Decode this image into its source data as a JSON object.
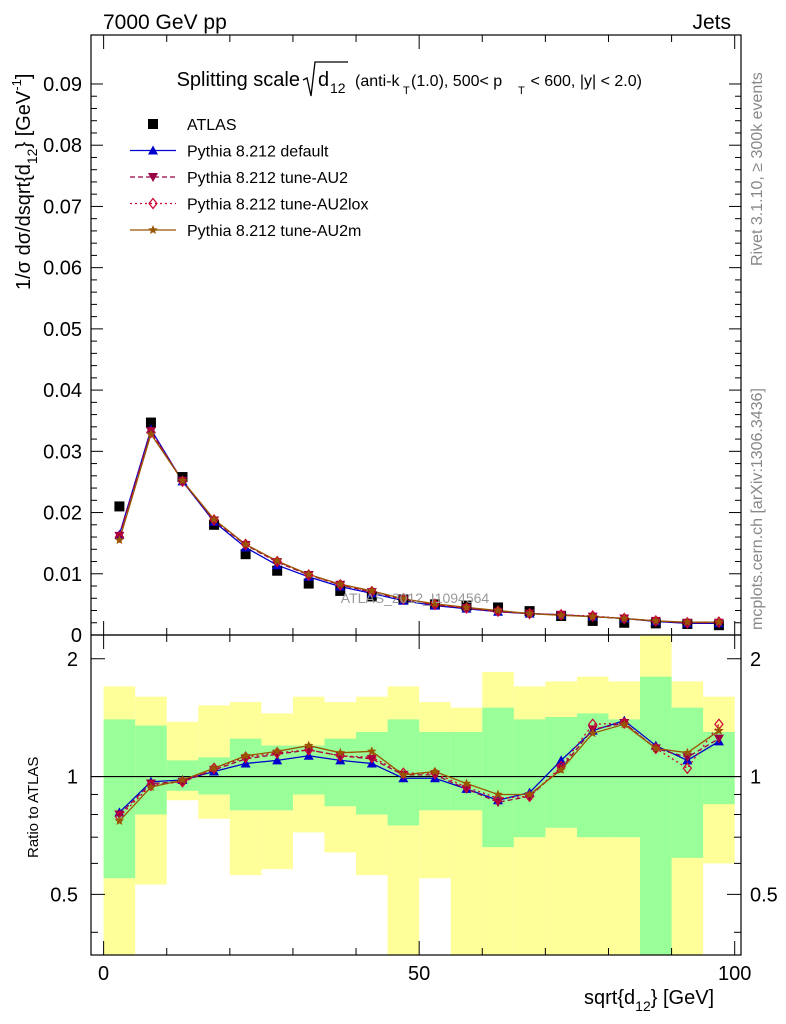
{
  "header": {
    "left_label": "7000 GeV pp",
    "right_label": "Jets"
  },
  "side_labels": {
    "rivet": "Rivet 3.1.10, ≥ 300k events",
    "source": "mcplots.cern.ch [arXiv:1306.3436]"
  },
  "chart_data": [
    {
      "type": "line",
      "title": "Splitting scale √d12 (anti-kT(1.0), 500< pT < 600, |y| < 2.0)",
      "title_parts": {
        "prefix": "Splitting scale",
        "d": "d",
        "d_sub": "12",
        "jet_open": "(anti-k",
        "kt_sub": "T",
        "jet_mid": "(1.0), 500< p",
        "pt_sub": "T",
        "jet_end": " < 600, |y| < 2.0)"
      },
      "ylabel": "1/σ dσ/dsqrt{d12} [GeV⁻¹]",
      "ylabel_parts": {
        "main": "1/σ dσ/dsqrt{d",
        "sub": "12",
        "close": "} [GeV",
        "sup": "-1",
        "end": "]"
      },
      "watermark": "ATLAS_2012_I1094564",
      "xlim": [
        -2,
        101
      ],
      "ylim": [
        0,
        0.098
      ],
      "yticks": [
        0,
        0.01,
        0.02,
        0.03,
        0.04,
        0.05,
        0.06,
        0.07,
        0.08,
        0.09
      ],
      "ytick_labels": [
        "0",
        "0.01",
        "0.02",
        "0.03",
        "0.04",
        "0.05",
        "0.06",
        "0.07",
        "0.08",
        "0.09"
      ],
      "legend_position": "top-left",
      "x": [
        2.5,
        7.5,
        12.5,
        17.5,
        22.5,
        27.5,
        32.5,
        37.5,
        42.5,
        47.5,
        52.5,
        57.5,
        62.5,
        67.5,
        72.5,
        77.5,
        82.5,
        87.5,
        92.5,
        97.5
      ],
      "series": [
        {
          "name": "ATLAS",
          "marker": "square",
          "color": "#000000",
          "values": [
            0.021,
            0.0347,
            0.0258,
            0.018,
            0.0132,
            0.0105,
            0.0084,
            0.0072,
            0.0063,
            0.0058,
            0.005,
            0.0048,
            0.0045,
            0.0039,
            0.0031,
            0.0023,
            0.002,
            0.0019,
            0.0018,
            0.0016
          ]
        },
        {
          "name": "Pythia 8.212 default",
          "marker": "triangle-up",
          "color": "#0000cc",
          "values": [
            0.0164,
            0.0336,
            0.0251,
            0.0185,
            0.0143,
            0.0114,
            0.0095,
            0.0079,
            0.0068,
            0.0056,
            0.0048,
            0.0043,
            0.0038,
            0.0035,
            0.0033,
            0.003,
            0.0027,
            0.0022,
            0.0019,
            0.0019
          ]
        },
        {
          "name": "Pythia 8.212 tune-AU2",
          "marker": "triangle-down",
          "color": "#990044",
          "dash": "5,3",
          "values": [
            0.0162,
            0.0333,
            0.0252,
            0.0187,
            0.0147,
            0.0119,
            0.0098,
            0.0082,
            0.007,
            0.0058,
            0.0049,
            0.0044,
            0.0038,
            0.0035,
            0.0033,
            0.003,
            0.0027,
            0.0023,
            0.002,
            0.002
          ]
        },
        {
          "name": "Pythia 8.212 tune-AU2lox",
          "marker": "diamond-open",
          "color": "#cc0033",
          "dash": "2,3",
          "values": [
            0.016,
            0.0331,
            0.0251,
            0.0188,
            0.0148,
            0.012,
            0.0098,
            0.0082,
            0.0071,
            0.0059,
            0.005,
            0.0044,
            0.0039,
            0.0035,
            0.0033,
            0.0031,
            0.0027,
            0.0023,
            0.002,
            0.0021
          ]
        },
        {
          "name": "Pythia 8.212 tune-AU2m",
          "marker": "star",
          "color": "#995500",
          "values": [
            0.0155,
            0.0328,
            0.0252,
            0.0189,
            0.0148,
            0.0121,
            0.0099,
            0.0083,
            0.0072,
            0.0059,
            0.0051,
            0.0045,
            0.004,
            0.0035,
            0.0032,
            0.003,
            0.0027,
            0.0023,
            0.0021,
            0.0021
          ]
        }
      ]
    },
    {
      "type": "line",
      "ylabel": "Ratio to ATLAS",
      "xlabel": "sqrt{d12} [GeV]",
      "xlabel_parts": {
        "main": "sqrt{d",
        "sub": "12",
        "close": "} [GeV]"
      },
      "xlim": [
        -2,
        101
      ],
      "ylim": [
        0.35,
        2.3
      ],
      "xticks": [
        0,
        50,
        100
      ],
      "xtick_labels": [
        "0",
        "50",
        "100"
      ],
      "yticks": [
        0.5,
        1,
        2
      ],
      "ytick_labels": [
        "0.5",
        "1",
        "2"
      ],
      "reference_line": 1,
      "bin_edges": [
        0,
        5,
        10,
        15,
        20,
        25,
        30,
        35,
        40,
        45,
        50,
        55,
        60,
        65,
        70,
        75,
        80,
        85,
        90,
        95,
        100
      ],
      "band_inner": {
        "color": "#99ff99",
        "low": [
          0.55,
          0.8,
          0.92,
          0.9,
          0.82,
          0.82,
          0.9,
          0.84,
          0.8,
          0.75,
          0.82,
          0.82,
          0.66,
          0.7,
          0.74,
          0.7,
          0.7,
          0.35,
          0.62,
          0.85
        ],
        "high": [
          1.4,
          1.35,
          1.1,
          1.12,
          1.25,
          1.2,
          1.2,
          1.25,
          1.3,
          1.4,
          1.3,
          1.3,
          1.5,
          1.4,
          1.42,
          1.45,
          1.4,
          1.8,
          1.5,
          1.3
        ]
      },
      "band_outer": {
        "color": "#ffff99",
        "low": [
          0.35,
          0.53,
          0.87,
          0.78,
          0.56,
          0.58,
          0.72,
          0.64,
          0.56,
          0.35,
          0.55,
          0.35,
          0.35,
          0.35,
          0.35,
          0.35,
          0.35,
          0.35,
          0.35,
          0.6
        ],
        "high": [
          1.7,
          1.6,
          1.38,
          1.52,
          1.55,
          1.45,
          1.6,
          1.55,
          1.6,
          1.7,
          1.55,
          1.5,
          1.85,
          1.7,
          1.75,
          1.8,
          1.75,
          2.3,
          1.75,
          1.6
        ]
      },
      "series": [
        {
          "name": "Pythia 8.212 default",
          "values": [
            0.81,
            0.97,
            0.98,
            1.03,
            1.08,
            1.1,
            1.13,
            1.1,
            1.08,
            0.99,
            0.99,
            0.93,
            0.87,
            0.91,
            1.1,
            1.31,
            1.39,
            1.2,
            1.1,
            1.23
          ]
        },
        {
          "name": "Pythia 8.212 tune-AU2",
          "values": [
            0.8,
            0.96,
            0.97,
            1.04,
            1.11,
            1.14,
            1.17,
            1.13,
            1.11,
            1.01,
            1.01,
            0.93,
            0.86,
            0.89,
            1.05,
            1.32,
            1.37,
            1.18,
            1.12,
            1.25
          ]
        },
        {
          "name": "Pythia 8.212 tune-AU2lox",
          "values": [
            0.79,
            0.95,
            0.97,
            1.05,
            1.12,
            1.15,
            1.17,
            1.13,
            1.12,
            1.02,
            1.02,
            0.94,
            0.88,
            0.89,
            1.06,
            1.36,
            1.37,
            1.18,
            1.05,
            1.36
          ]
        },
        {
          "name": "Pythia 8.212 tune-AU2m",
          "values": [
            0.77,
            0.94,
            0.98,
            1.05,
            1.13,
            1.16,
            1.2,
            1.15,
            1.16,
            1.01,
            1.03,
            0.96,
            0.9,
            0.9,
            1.04,
            1.29,
            1.36,
            1.18,
            1.15,
            1.31
          ]
        }
      ]
    }
  ]
}
